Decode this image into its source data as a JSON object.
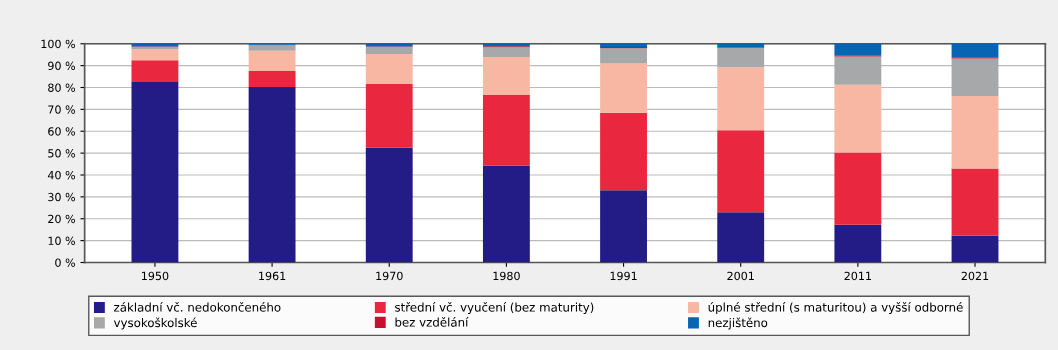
{
  "chart_data": {
    "type": "bar",
    "stacked": true,
    "categories": [
      "1950",
      "1961",
      "1970",
      "1980",
      "1991",
      "2001",
      "2011",
      "2021"
    ],
    "series": [
      {
        "name": "základní vč. nedokončeného",
        "color": "#231c86",
        "values": [
          82.5,
          80.2,
          52.6,
          44.3,
          33,
          23,
          17.3,
          12.2
        ]
      },
      {
        "name": "střední vč. vyučení (bez maturity)",
        "color": "#e9283f",
        "values": [
          10,
          7.3,
          29,
          32.3,
          35.5,
          37.5,
          33,
          30.8
        ]
      },
      {
        "name": "úplné střední (s maturitou) a vyšší odborné",
        "color": "#f7b7a3",
        "values": [
          5,
          9.3,
          13.7,
          17.3,
          22.5,
          28.7,
          31,
          33.1
        ]
      },
      {
        "name": "vysokoškolské",
        "color": "#a7a8aa",
        "values": [
          1,
          2.5,
          3.2,
          4.5,
          7,
          9,
          12.9,
          17.2
        ]
      },
      {
        "name": "bez vzdělání",
        "color": "#c8102e",
        "values": [
          0.3,
          null,
          0.3,
          0.5,
          0.5,
          0.3,
          0.5,
          0.5
        ]
      },
      {
        "name": "nezjištěno",
        "color": "#0a64b4",
        "values": [
          1.2,
          0.5,
          1.2,
          1.1,
          1.5,
          1.5,
          5.3,
          6.2
        ]
      }
    ],
    "ylim": [
      0,
      100
    ],
    "yticks": [
      {
        "value": 0,
        "label": "0 %"
      },
      {
        "value": 10,
        "label": "10 %"
      },
      {
        "value": 20,
        "label": "20 %"
      },
      {
        "value": 30,
        "label": "30 %"
      },
      {
        "value": 40,
        "label": "40 %"
      },
      {
        "value": 50,
        "label": "50 %"
      },
      {
        "value": 60,
        "label": "60 %"
      },
      {
        "value": 70,
        "label": "70 %"
      },
      {
        "value": 80,
        "label": "80 %"
      },
      {
        "value": 90,
        "label": "90 %"
      },
      {
        "value": 100,
        "label": "100 %"
      }
    ],
    "grid": "y",
    "legend": "bottom"
  }
}
